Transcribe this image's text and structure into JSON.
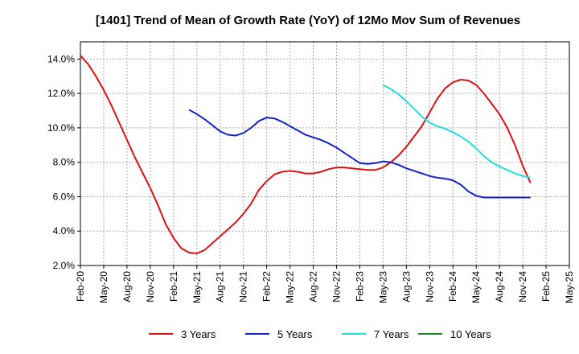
{
  "chart_data": {
    "type": "line",
    "title": "[1401]  Trend of Mean of Growth Rate (YoY) of 12Mo Mov Sum of Revenues",
    "xlabel": "",
    "ylabel": "",
    "ylim": [
      2.0,
      15.0
    ],
    "y_ticks": [
      2.0,
      4.0,
      6.0,
      8.0,
      10.0,
      12.0,
      14.0
    ],
    "y_tick_labels": [
      "2.0%",
      "4.0%",
      "6.0%",
      "8.0%",
      "10.0%",
      "12.0%",
      "14.0%"
    ],
    "x_tick_labels": [
      "Feb-20",
      "May-20",
      "Aug-20",
      "Nov-20",
      "Feb-21",
      "May-21",
      "Aug-21",
      "Nov-21",
      "Feb-22",
      "May-22",
      "Aug-22",
      "Nov-22",
      "Feb-23",
      "May-23",
      "Aug-23",
      "Nov-23",
      "Feb-24",
      "May-24",
      "Aug-24",
      "Nov-24",
      "Feb-25",
      "May-25"
    ],
    "grid": true,
    "series": [
      {
        "name": "3 Years",
        "color": "#dd1111",
        "start_index": 0,
        "values": [
          14.2,
          13.7,
          13.0,
          12.2,
          11.3,
          10.3,
          9.3,
          8.3,
          7.4,
          6.5,
          5.5,
          4.4,
          3.6,
          3.0,
          2.75,
          2.7,
          2.9,
          3.3,
          3.7,
          4.1,
          4.5,
          5.0,
          5.6,
          6.4,
          6.9,
          7.3,
          7.45,
          7.5,
          7.45,
          7.35,
          7.35,
          7.45,
          7.6,
          7.7,
          7.7,
          7.65,
          7.6,
          7.55,
          7.55,
          7.7,
          8.0,
          8.4,
          8.9,
          9.5,
          10.1,
          10.9,
          11.7,
          12.3,
          12.65,
          12.8,
          12.75,
          12.5,
          12.0,
          11.4,
          10.8,
          10.0,
          9.0,
          7.8,
          6.8
        ]
      },
      {
        "name": "5 Years",
        "color": "#1122cc",
        "start_index": 14,
        "values": [
          11.05,
          10.8,
          10.5,
          10.15,
          9.8,
          9.6,
          9.55,
          9.7,
          10.0,
          10.4,
          10.6,
          10.55,
          10.35,
          10.1,
          9.85,
          9.6,
          9.45,
          9.3,
          9.1,
          8.85,
          8.55,
          8.25,
          7.95,
          7.9,
          7.95,
          8.05,
          8.0,
          7.85,
          7.65,
          7.5,
          7.35,
          7.2,
          7.1,
          7.05,
          6.95,
          6.7,
          6.3,
          6.05,
          5.95,
          5.95,
          5.95,
          5.95,
          5.95,
          5.95,
          5.95
        ]
      },
      {
        "name": "7 Years",
        "color": "#22dddd",
        "start_index": 39,
        "values": [
          12.5,
          12.25,
          11.95,
          11.55,
          11.1,
          10.65,
          10.3,
          10.1,
          9.95,
          9.75,
          9.5,
          9.2,
          8.8,
          8.35,
          8.0,
          7.75,
          7.55,
          7.35,
          7.2,
          7.1
        ]
      },
      {
        "name": "10 Years",
        "color": "#228822",
        "start_index": 0,
        "values": []
      }
    ]
  }
}
